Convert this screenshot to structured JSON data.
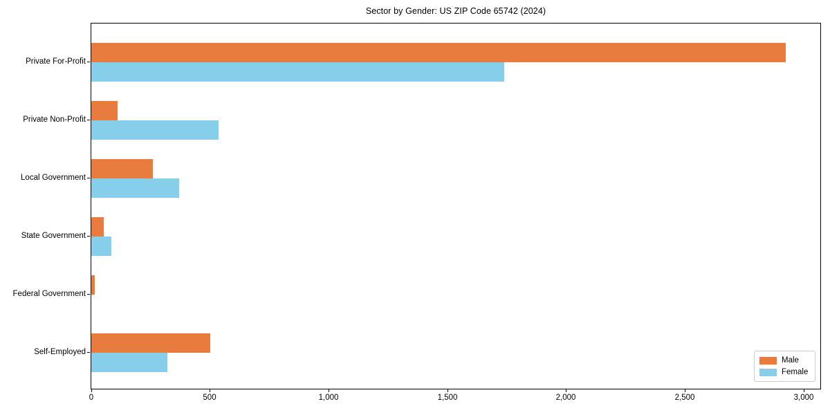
{
  "chart_data": {
    "type": "bar",
    "orientation": "horizontal",
    "title": "Sector by Gender: US ZIP Code 65742 (2024)",
    "categories": [
      "Private For-Profit",
      "Private Non-Profit",
      "Local Government",
      "State Government",
      "Federal Government",
      "Self-Employed"
    ],
    "series": [
      {
        "name": "Male",
        "color": "#e87c3e",
        "values": [
          2925,
          110,
          260,
          52,
          16,
          500
        ]
      },
      {
        "name": "Female",
        "color": "#87ceeb",
        "values": [
          1740,
          535,
          370,
          85,
          0,
          320
        ]
      }
    ],
    "xlabel": "",
    "ylabel": "",
    "xlim": [
      0,
      3076
    ],
    "x_ticks": [
      0,
      500,
      1000,
      1500,
      2000,
      2500,
      3000
    ],
    "x_tick_labels": [
      "0",
      "500",
      "1,000",
      "1,500",
      "2,000",
      "2,500",
      "3,000"
    ],
    "grid": false,
    "legend_position": "lower right",
    "axis_color": "#000000",
    "background_color": "#ffffff"
  }
}
